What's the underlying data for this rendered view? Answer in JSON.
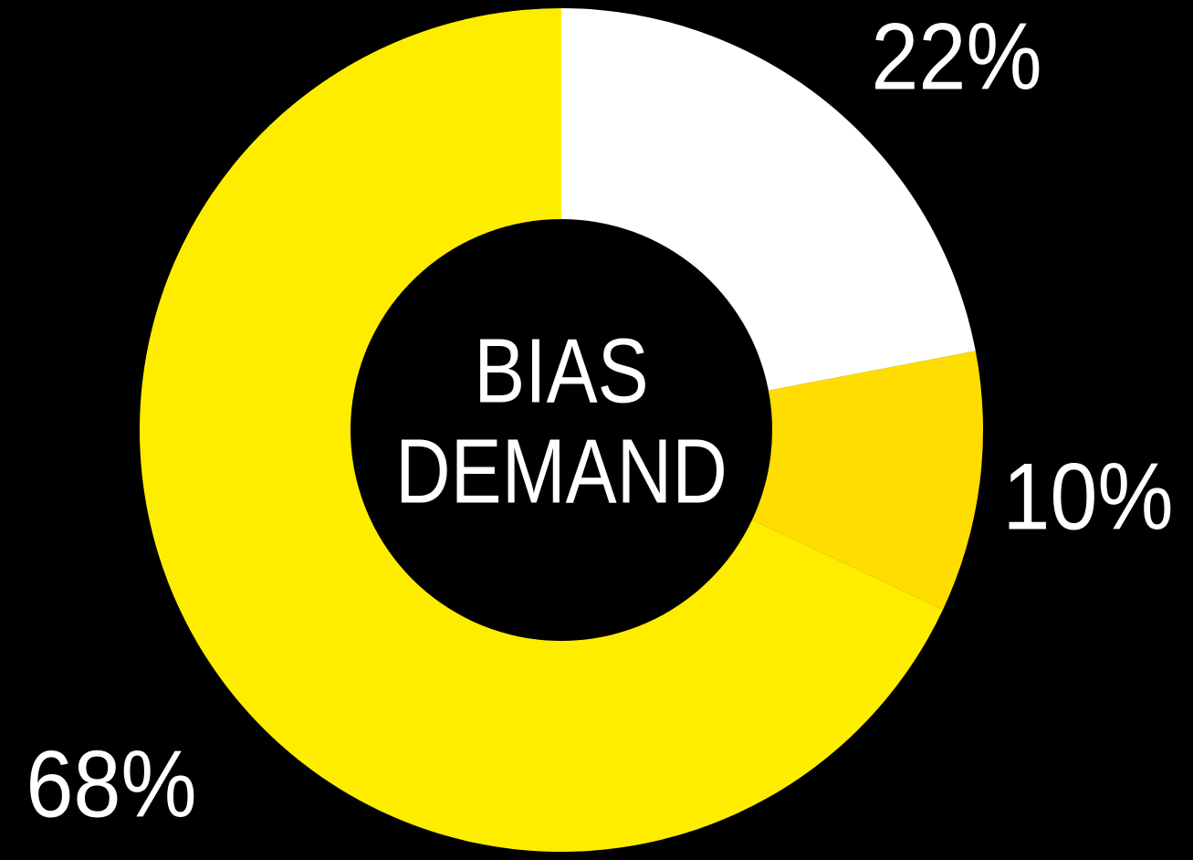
{
  "chart_data": {
    "type": "donut",
    "categories": [
      null,
      null,
      null
    ],
    "values": [
      22,
      10,
      68
    ],
    "value_labels": [
      "22%",
      "10%",
      "68%"
    ],
    "colors": [
      "#ffffff",
      "#ffdd00",
      "#ffed00"
    ],
    "center_label": [
      "BIAS",
      "DEMAND"
    ]
  }
}
